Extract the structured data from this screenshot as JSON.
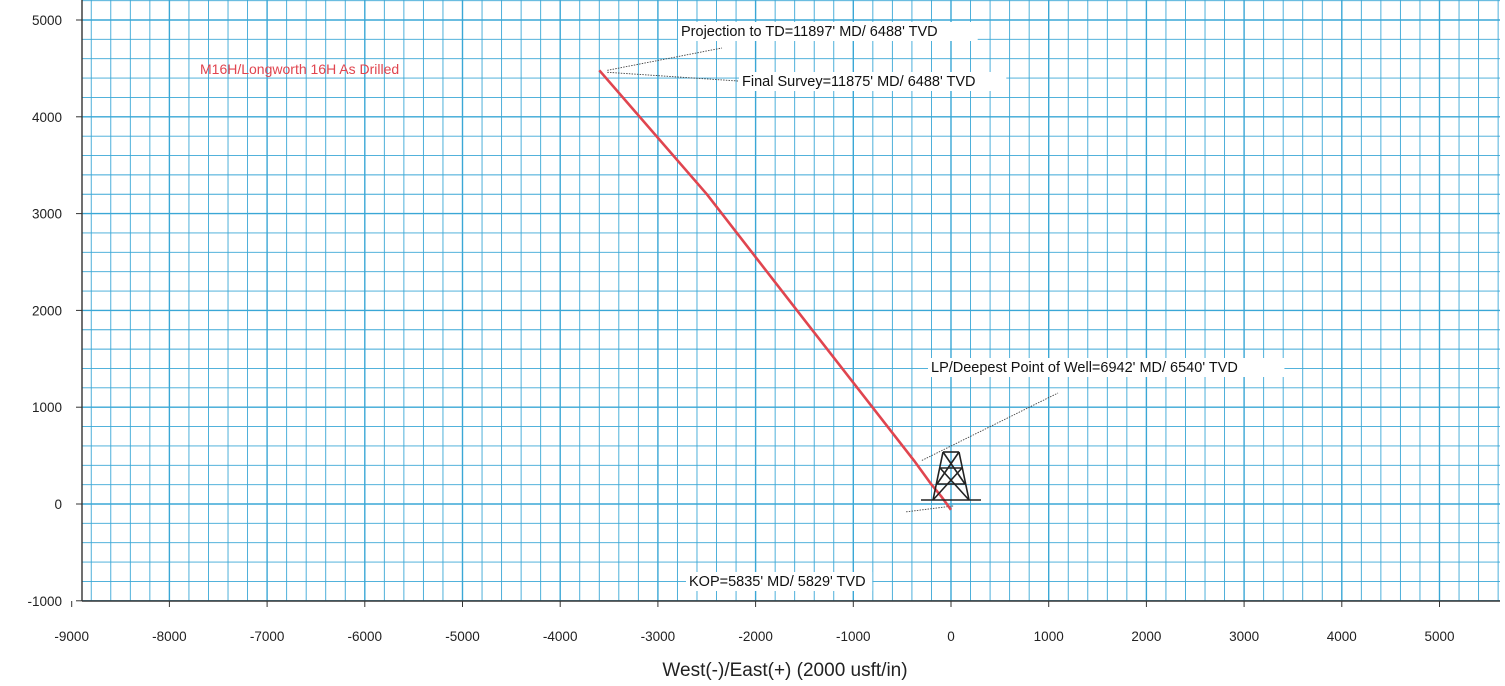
{
  "chart_data": {
    "type": "line",
    "xlabel": "West(-)/East(+) (2000 usft/in)",
    "xlim": [
      -9000,
      5600
    ],
    "ylim": [
      -1000,
      5100
    ],
    "x_ticks": [
      -9000,
      -8000,
      -7000,
      -6000,
      -5000,
      -4000,
      -3000,
      -2000,
      -1000,
      0,
      1000,
      2000,
      3000,
      4000,
      5000
    ],
    "y_ticks": [
      -1000,
      0,
      1000,
      2000,
      3000,
      4000,
      5000
    ],
    "grid": true,
    "grid_color": "#3aa7d6",
    "series": [
      {
        "name": "M16H/Longworth 16H As Drilled",
        "color": "#e0454f",
        "x": [
          0,
          -100,
          -200,
          -380,
          -1500,
          -2500,
          -3600
        ],
        "y": [
          -60,
          80,
          200,
          450,
          1900,
          3200,
          4480
        ]
      }
    ],
    "annotations": [
      {
        "text": "Projection to TD=11897' MD/ 6488' TVD",
        "x": -3600,
        "y": 4480
      },
      {
        "text": "Final Survey=11875' MD/ 6488' TVD",
        "x": -3600,
        "y": 4460
      },
      {
        "text": "LP/Deepest Point of Well=6942' MD/ 6540' TVD",
        "x": -380,
        "y": 450
      },
      {
        "text": "KOP=5835' MD/ 5829' TVD",
        "x": -60,
        "y": -20
      }
    ],
    "rig_icon": "drilling-rig-icon"
  }
}
